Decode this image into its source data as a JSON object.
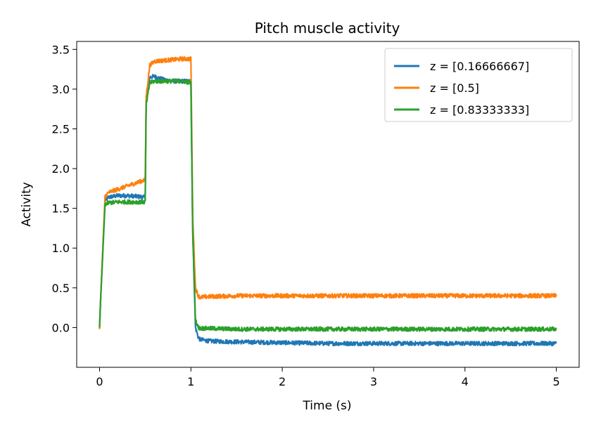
{
  "chart_data": {
    "type": "line",
    "title": "Pitch muscle activity",
    "xlabel": "Time (s)",
    "ylabel": "Activity",
    "xlim": [
      -0.25,
      5.25
    ],
    "ylim": [
      -0.5,
      3.6
    ],
    "xticks": [
      0,
      1,
      2,
      3,
      4,
      5
    ],
    "xtick_labels": [
      "0",
      "1",
      "2",
      "3",
      "4",
      "5"
    ],
    "yticks": [
      0.0,
      0.5,
      1.0,
      1.5,
      2.0,
      2.5,
      3.0,
      3.5
    ],
    "ytick_labels": [
      "0.0",
      "0.5",
      "1.0",
      "1.5",
      "2.0",
      "2.5",
      "3.0",
      "3.5"
    ],
    "grid": false,
    "legend_position": "top-right",
    "series": [
      {
        "name": "z = [0.16666667]",
        "color": "#1f77b4",
        "noise": 0.012,
        "x": [
          0,
          0.01,
          0.06,
          0.1,
          0.2,
          0.3,
          0.4,
          0.5,
          0.51,
          0.55,
          0.6,
          0.7,
          0.8,
          0.9,
          1.0,
          1.02,
          1.05,
          1.08,
          1.1,
          1.2,
          1.5,
          2.0,
          2.5,
          3.0,
          3.5,
          4.0,
          4.5,
          5.0
        ],
        "y": [
          0.0,
          0.3,
          1.6,
          1.64,
          1.66,
          1.66,
          1.65,
          1.64,
          2.8,
          3.15,
          3.16,
          3.12,
          3.1,
          3.1,
          3.1,
          1.2,
          0.0,
          -0.12,
          -0.15,
          -0.17,
          -0.18,
          -0.19,
          -0.2,
          -0.2,
          -0.2,
          -0.2,
          -0.2,
          -0.2
        ]
      },
      {
        "name": "z = [0.5]",
        "color": "#ff7f0e",
        "noise": 0.012,
        "x": [
          0,
          0.01,
          0.06,
          0.1,
          0.2,
          0.3,
          0.4,
          0.5,
          0.51,
          0.55,
          0.6,
          0.7,
          0.8,
          0.9,
          1.0,
          1.02,
          1.05,
          1.08,
          1.1,
          1.2,
          1.5,
          2.0,
          2.5,
          3.0,
          3.5,
          4.0,
          4.5,
          5.0
        ],
        "y": [
          -0.02,
          0.3,
          1.65,
          1.7,
          1.74,
          1.78,
          1.82,
          1.86,
          2.9,
          3.3,
          3.35,
          3.36,
          3.37,
          3.38,
          3.38,
          1.4,
          0.5,
          0.4,
          0.38,
          0.39,
          0.4,
          0.4,
          0.4,
          0.4,
          0.4,
          0.4,
          0.4,
          0.4
        ]
      },
      {
        "name": "z = [0.83333333]",
        "color": "#2ca02c",
        "noise": 0.012,
        "x": [
          0,
          0.01,
          0.06,
          0.1,
          0.2,
          0.3,
          0.4,
          0.5,
          0.51,
          0.55,
          0.6,
          0.7,
          0.8,
          0.9,
          1.0,
          1.02,
          1.05,
          1.08,
          1.1,
          1.2,
          1.5,
          2.0,
          2.5,
          3.0,
          3.5,
          4.0,
          4.5,
          5.0
        ],
        "y": [
          0.0,
          0.3,
          1.55,
          1.57,
          1.58,
          1.58,
          1.58,
          1.58,
          2.8,
          3.08,
          3.1,
          3.1,
          3.1,
          3.1,
          3.08,
          1.2,
          0.1,
          0.0,
          -0.01,
          -0.01,
          -0.02,
          -0.02,
          -0.02,
          -0.02,
          -0.02,
          -0.02,
          -0.02,
          -0.02
        ]
      }
    ]
  }
}
